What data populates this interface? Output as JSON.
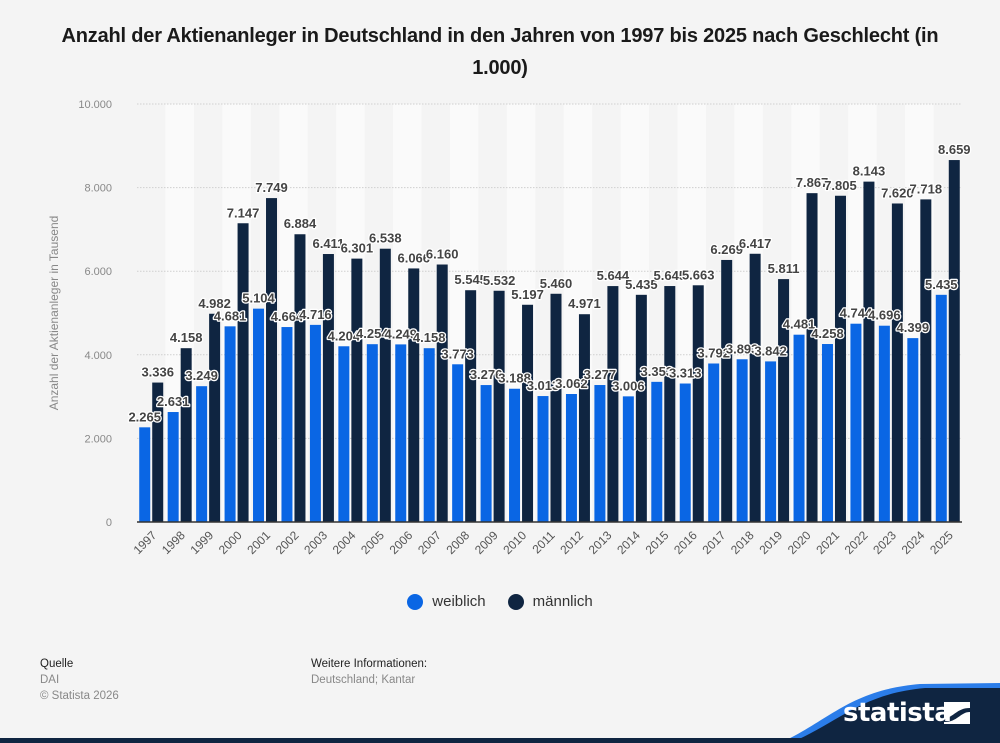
{
  "title": "Anzahl der Aktienanleger in Deutschland in den Jahren von 1997 bis 2025 nach Geschlecht (in 1.000)",
  "chart_data": {
    "type": "bar",
    "title": "Anzahl der Aktienanleger in Deutschland in den Jahren von 1997 bis 2025 nach Geschlecht (in 1.000)",
    "xlabel": "",
    "ylabel": "Anzahl der Aktienanleger in Tausend",
    "ylim": [
      0,
      10000
    ],
    "yticks": [
      0,
      2000,
      4000,
      6000,
      8000,
      10000
    ],
    "ytick_labels": [
      "0",
      "2.000",
      "4.000",
      "6.000",
      "8.000",
      "10.000"
    ],
    "grid": true,
    "legend_position": "bottom",
    "categories": [
      "1997",
      "1998",
      "1999",
      "2000",
      "2001",
      "2002",
      "2003",
      "2004",
      "2005",
      "2006",
      "2007",
      "2008",
      "2009",
      "2010",
      "2011",
      "2012",
      "2013",
      "2014",
      "2015",
      "2016",
      "2017",
      "2018",
      "2019",
      "2020",
      "2021",
      "2022",
      "2023",
      "2024",
      "2025"
    ],
    "series": [
      {
        "name": "weiblich",
        "color": "#0a66e4",
        "values": [
          2265,
          2631,
          3249,
          4681,
          5104,
          4664,
          4716,
          4204,
          4254,
          4249,
          4158,
          3773,
          3276,
          3188,
          3013,
          3062,
          3277,
          3006,
          3353,
          3313,
          3792,
          3893,
          3842,
          4481,
          4258,
          4744,
          4696,
          4399,
          5435
        ],
        "labels": [
          "2.265",
          "2.631",
          "3.249",
          "4.681",
          "5.104",
          "4.664",
          "4.716",
          "4.204",
          "4.254",
          "4.249",
          "4.158",
          "3.773",
          "3.276",
          "3.188",
          "3.013",
          "3.062",
          "3.277",
          "3.006",
          "3.353",
          "3.313",
          "3.792",
          "3.893",
          "3.842",
          "4.481",
          "4.258",
          "4.744",
          "4.696",
          "4.399",
          "5.435"
        ]
      },
      {
        "name": "männlich",
        "color": "#0f2541",
        "values": [
          3336,
          4158,
          4982,
          7147,
          7749,
          6884,
          6411,
          6301,
          6538,
          6066,
          6160,
          5545,
          5532,
          5197,
          5460,
          4971,
          5644,
          5435,
          5645,
          5663,
          6269,
          6417,
          5811,
          7867,
          7805,
          8143,
          7620,
          7718,
          8659
        ],
        "labels": [
          "3.336",
          "4.158",
          "4.982",
          "7.147",
          "7.749",
          "6.884",
          "6.411",
          "6.301",
          "6.538",
          "6.066",
          "6.160",
          "5.545",
          "5.532",
          "5.197",
          "5.460",
          "4.971",
          "5.644",
          "5.435",
          "5.645",
          "5.663",
          "6.269",
          "6.417",
          "5.811",
          "7.867",
          "7.805",
          "8.143",
          "7.620",
          "7.718",
          "8.659"
        ]
      }
    ]
  },
  "legend": [
    {
      "label": "weiblich",
      "color": "#0a66e4"
    },
    {
      "label": "männlich",
      "color": "#0f2541"
    }
  ],
  "footer": {
    "source_heading": "Quelle",
    "source": "DAI",
    "copyright": "© Statista 2026",
    "info_heading": "Weitere Informationen:",
    "info": "Deutschland; Kantar"
  },
  "brand": {
    "name": "statista",
    "logo_icon": "statista-logo-icon"
  }
}
